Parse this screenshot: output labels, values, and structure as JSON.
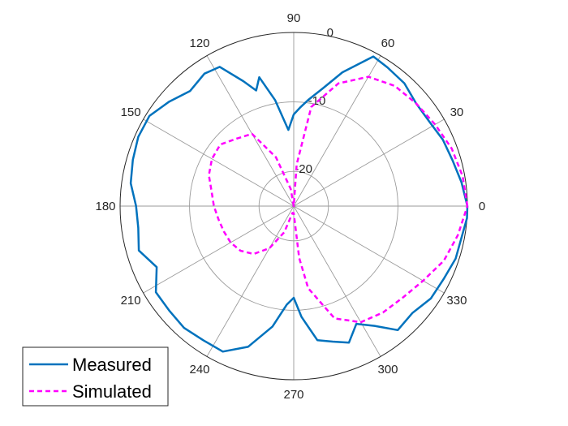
{
  "chart_data": {
    "type": "polar-line",
    "title": "",
    "theta_unit": "degrees",
    "r_unit": "",
    "rlim": [
      -25,
      0
    ],
    "r_ticks": [
      -20,
      -10,
      0
    ],
    "r_tick_labels": [
      "-20",
      "-10",
      "0"
    ],
    "theta_ticks": [
      0,
      30,
      60,
      90,
      120,
      150,
      180,
      210,
      240,
      270,
      300,
      330
    ],
    "theta_tick_labels": [
      "0",
      "30",
      "60",
      "90",
      "120",
      "150",
      "180",
      "210",
      "240",
      "270",
      "300",
      "330"
    ],
    "grid": true,
    "legend_position": "bottom-left",
    "series": [
      {
        "name": "Measured",
        "color": "#0072BD",
        "style": "solid",
        "theta": [
          0,
          8,
          16,
          24,
          32,
          40,
          48,
          56,
          62,
          70,
          76,
          82,
          86,
          90,
          94,
          100,
          105,
          108,
          112,
          118,
          124,
          132,
          140,
          148,
          156,
          164,
          172,
          180,
          188,
          196,
          204,
          212,
          220,
          228,
          236,
          244,
          252,
          260,
          266,
          270,
          274,
          280,
          286,
          292,
          298,
          304,
          310,
          318,
          326,
          334,
          342,
          350,
          356,
          360
        ],
        "r": [
          0,
          -0.6,
          -1.2,
          -1.5,
          -2.0,
          -2.0,
          -1.2,
          -0.9,
          -0.6,
          -4.5,
          -7.5,
          -9.5,
          -10.7,
          -11.8,
          -14.0,
          -9.5,
          -5.8,
          -7.5,
          -5.6,
          -2.3,
          -2.0,
          -2.7,
          -1.6,
          -0.5,
          -0.5,
          -0.9,
          -1.3,
          -2.3,
          -2.4,
          -1.8,
          -3.4,
          -1.6,
          -1.6,
          -1.4,
          -1.7,
          -1.7,
          -3.7,
          -7.4,
          -10.8,
          -11.8,
          -9.0,
          -5.4,
          -4.7,
          -3.8,
          -5.8,
          -4.2,
          -1.7,
          -2.0,
          -1.2,
          -1.0,
          -0.5,
          -0.4,
          0,
          0
        ]
      },
      {
        "name": "Simulated",
        "color": "#FF00FF",
        "style": "dashed",
        "theta": [
          0,
          10,
          20,
          30,
          40,
          50,
          60,
          70,
          80,
          86,
          90,
          100,
          110,
          120,
          130,
          140,
          150,
          160,
          170,
          180,
          190,
          200,
          210,
          220,
          230,
          240,
          250,
          260,
          270,
          276,
          280,
          290,
          300,
          310,
          320,
          330,
          340,
          350,
          360
        ],
        "r": [
          0,
          -0.3,
          -0.8,
          -1.5,
          -2.0,
          -2.4,
          -3.5,
          -6.2,
          -10.5,
          -19.0,
          -25.0,
          -22.5,
          -17.5,
          -13.0,
          -12.3,
          -11.2,
          -11.4,
          -12.0,
          -13.0,
          -13.5,
          -14.0,
          -14.3,
          -14.5,
          -15.0,
          -16.0,
          -18.0,
          -21.0,
          -24.0,
          -24.0,
          -17.5,
          -13.0,
          -7.8,
          -5.7,
          -5.0,
          -4.5,
          -3.5,
          -2.0,
          -1.0,
          0
        ]
      }
    ]
  }
}
